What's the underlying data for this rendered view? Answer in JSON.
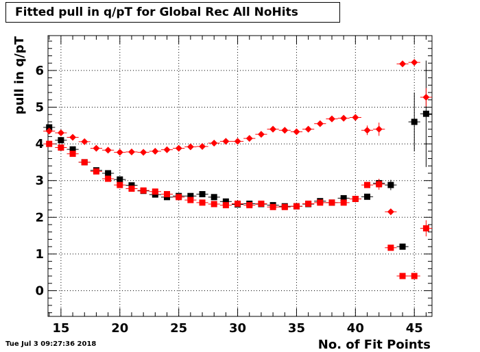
{
  "chart_data": {
    "type": "scatter",
    "title": "Fitted pull in q/pT for Global Rec All NoHits",
    "xlabel": "No. of Fit Points",
    "ylabel": "pull in q/pT",
    "timestamp": "Tue Jul  3 09:27:36 2018",
    "xlim": [
      13.9,
      46.5
    ],
    "ylim": [
      -0.7,
      6.95
    ],
    "x_ticks": [
      15,
      20,
      25,
      30,
      35,
      40,
      45
    ],
    "y_ticks": [
      0,
      1,
      2,
      3,
      4,
      5,
      6
    ],
    "grid": true,
    "series": [
      {
        "marker": "square",
        "color": "#000000",
        "points": [
          {
            "x": 14,
            "y": 4.45
          },
          {
            "x": 15,
            "y": 4.1
          },
          {
            "x": 16,
            "y": 3.85
          },
          {
            "x": 17,
            "y": 3.5
          },
          {
            "x": 18,
            "y": 3.28
          },
          {
            "x": 19,
            "y": 3.2
          },
          {
            "x": 20,
            "y": 3.03
          },
          {
            "x": 21,
            "y": 2.87
          },
          {
            "x": 22,
            "y": 2.72
          },
          {
            "x": 23,
            "y": 2.62
          },
          {
            "x": 24,
            "y": 2.55
          },
          {
            "x": 25,
            "y": 2.58
          },
          {
            "x": 26,
            "y": 2.58
          },
          {
            "x": 27,
            "y": 2.63
          },
          {
            "x": 28,
            "y": 2.55
          },
          {
            "x": 29,
            "y": 2.43
          },
          {
            "x": 30,
            "y": 2.35
          },
          {
            "x": 31,
            "y": 2.37
          },
          {
            "x": 32,
            "y": 2.36
          },
          {
            "x": 33,
            "y": 2.33
          },
          {
            "x": 34,
            "y": 2.3
          },
          {
            "x": 35,
            "y": 2.3
          },
          {
            "x": 36,
            "y": 2.36
          },
          {
            "x": 37,
            "y": 2.44
          },
          {
            "x": 38,
            "y": 2.4
          },
          {
            "x": 39,
            "y": 2.52
          },
          {
            "x": 40,
            "y": 2.5
          },
          {
            "x": 41,
            "y": 2.56
          },
          {
            "x": 42,
            "y": 2.93
          },
          {
            "x": 43,
            "y": 2.88
          },
          {
            "x": 44,
            "y": 1.2
          },
          {
            "x": 45,
            "y": 4.6
          },
          {
            "x": 46,
            "y": 4.82
          }
        ],
        "errors": [
          0.08,
          0.04,
          0.03,
          0.03,
          0.03,
          0.03,
          0.03,
          0.03,
          0.03,
          0.03,
          0.03,
          0.03,
          0.03,
          0.03,
          0.03,
          0.03,
          0.03,
          0.03,
          0.03,
          0.03,
          0.03,
          0.03,
          0.03,
          0.03,
          0.03,
          0.04,
          0.04,
          0.06,
          0.1,
          0.14,
          0.07,
          0.8,
          1.45
        ]
      },
      {
        "marker": "square",
        "color": "#ff0000",
        "points": [
          {
            "x": 14,
            "y": 4.0
          },
          {
            "x": 15,
            "y": 3.9
          },
          {
            "x": 16,
            "y": 3.73
          },
          {
            "x": 17,
            "y": 3.5
          },
          {
            "x": 18,
            "y": 3.25
          },
          {
            "x": 19,
            "y": 3.05
          },
          {
            "x": 20,
            "y": 2.88
          },
          {
            "x": 21,
            "y": 2.78
          },
          {
            "x": 22,
            "y": 2.73
          },
          {
            "x": 23,
            "y": 2.7
          },
          {
            "x": 24,
            "y": 2.63
          },
          {
            "x": 25,
            "y": 2.55
          },
          {
            "x": 26,
            "y": 2.47
          },
          {
            "x": 27,
            "y": 2.4
          },
          {
            "x": 28,
            "y": 2.36
          },
          {
            "x": 29,
            "y": 2.33
          },
          {
            "x": 30,
            "y": 2.37
          },
          {
            "x": 31,
            "y": 2.33
          },
          {
            "x": 32,
            "y": 2.37
          },
          {
            "x": 33,
            "y": 2.28
          },
          {
            "x": 34,
            "y": 2.28
          },
          {
            "x": 35,
            "y": 2.3
          },
          {
            "x": 36,
            "y": 2.37
          },
          {
            "x": 37,
            "y": 2.4
          },
          {
            "x": 38,
            "y": 2.4
          },
          {
            "x": 39,
            "y": 2.4
          },
          {
            "x": 40,
            "y": 2.5
          },
          {
            "x": 41,
            "y": 2.88
          },
          {
            "x": 42,
            "y": 2.9
          },
          {
            "x": 43,
            "y": 1.17
          },
          {
            "x": 44,
            "y": 0.4
          },
          {
            "x": 45,
            "y": 0.4
          },
          {
            "x": 46,
            "y": 1.7
          }
        ],
        "errors": [
          0.05,
          0.04,
          0.03,
          0.03,
          0.03,
          0.03,
          0.03,
          0.03,
          0.03,
          0.03,
          0.03,
          0.03,
          0.03,
          0.03,
          0.03,
          0.03,
          0.03,
          0.03,
          0.03,
          0.03,
          0.03,
          0.03,
          0.03,
          0.03,
          0.03,
          0.03,
          0.04,
          0.05,
          0.15,
          0.04,
          0.03,
          0.03,
          0.22
        ]
      },
      {
        "marker": "diamond",
        "color": "#ff0000",
        "points": [
          {
            "x": 14,
            "y": 4.35
          },
          {
            "x": 15,
            "y": 4.3
          },
          {
            "x": 16,
            "y": 4.18
          },
          {
            "x": 17,
            "y": 4.06
          },
          {
            "x": 18,
            "y": 3.88
          },
          {
            "x": 19,
            "y": 3.83
          },
          {
            "x": 20,
            "y": 3.77
          },
          {
            "x": 21,
            "y": 3.78
          },
          {
            "x": 22,
            "y": 3.77
          },
          {
            "x": 23,
            "y": 3.8
          },
          {
            "x": 24,
            "y": 3.84
          },
          {
            "x": 25,
            "y": 3.88
          },
          {
            "x": 26,
            "y": 3.92
          },
          {
            "x": 27,
            "y": 3.93
          },
          {
            "x": 28,
            "y": 4.02
          },
          {
            "x": 29,
            "y": 4.07
          },
          {
            "x": 30,
            "y": 4.07
          },
          {
            "x": 31,
            "y": 4.15
          },
          {
            "x": 32,
            "y": 4.26
          },
          {
            "x": 33,
            "y": 4.4
          },
          {
            "x": 34,
            "y": 4.37
          },
          {
            "x": 35,
            "y": 4.33
          },
          {
            "x": 36,
            "y": 4.4
          },
          {
            "x": 37,
            "y": 4.55
          },
          {
            "x": 38,
            "y": 4.68
          },
          {
            "x": 39,
            "y": 4.7
          },
          {
            "x": 40,
            "y": 4.72
          },
          {
            "x": 41,
            "y": 4.37
          },
          {
            "x": 42,
            "y": 4.4
          },
          {
            "x": 43,
            "y": 2.15
          },
          {
            "x": 44,
            "y": 6.18
          },
          {
            "x": 45,
            "y": 6.22
          },
          {
            "x": 46,
            "y": 5.27
          }
        ],
        "errors": [
          0.05,
          0.04,
          0.03,
          0.03,
          0.03,
          0.03,
          0.03,
          0.03,
          0.03,
          0.03,
          0.03,
          0.03,
          0.03,
          0.03,
          0.03,
          0.03,
          0.03,
          0.03,
          0.03,
          0.03,
          0.03,
          0.03,
          0.03,
          0.03,
          0.03,
          0.03,
          0.05,
          0.13,
          0.18,
          0.04,
          0.03,
          0.03,
          0.25
        ]
      }
    ]
  }
}
